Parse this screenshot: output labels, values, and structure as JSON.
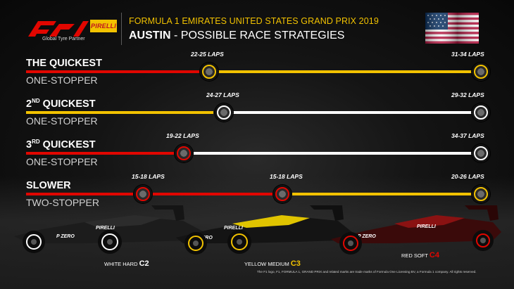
{
  "header": {
    "partner_text": "Global Tyre Partner",
    "pirelli_logo": "PIRELLI",
    "event_title": "FORMULA 1 EMIRATES UNITED STATES GRAND PRIX 2019",
    "city": "AUSTIN",
    "subtitle_rest": " - POSSIBLE RACE STRATEGIES",
    "flag": "usa-flag-icon"
  },
  "colors": {
    "hard": "#ffffff",
    "medium": "#f2c200",
    "soft": "#e10600",
    "accent": "#f2c200"
  },
  "strategies": [
    {
      "name": "THE QUICKEST",
      "ordinal": "",
      "name_rest": "",
      "type": "ONE-STOPPER",
      "stops": [
        {
          "laps": "22-25 LAPS",
          "compound": "medium"
        },
        {
          "laps": "31-34 LAPS",
          "compound": "medium"
        }
      ]
    },
    {
      "name": "2",
      "ordinal": "ND",
      "name_rest": " QUICKEST",
      "type": "ONE-STOPPER",
      "stops": [
        {
          "laps": "24-27 LAPS",
          "compound": "hard"
        },
        {
          "laps": "29-32 LAPS",
          "compound": "hard"
        }
      ]
    },
    {
      "name": "3",
      "ordinal": "RD",
      "name_rest": " QUICKEST",
      "type": "ONE-STOPPER",
      "stops": [
        {
          "laps": "19-22 LAPS",
          "compound": "soft"
        },
        {
          "laps": "34-37 LAPS",
          "compound": "hard"
        }
      ]
    },
    {
      "name": "SLOWER",
      "ordinal": "",
      "name_rest": "",
      "type": "TWO-STOPPER",
      "stops": [
        {
          "laps": "15-18 LAPS",
          "compound": "soft"
        },
        {
          "laps": "15-18 LAPS",
          "compound": "soft"
        },
        {
          "laps": "20-26 LAPS",
          "compound": "medium"
        }
      ]
    }
  ],
  "compounds": [
    {
      "label": "WHITE HARD",
      "code": "C2"
    },
    {
      "label": "YELLOW MEDIUM",
      "code": "C3"
    },
    {
      "label": "RED SOFT",
      "code": "C4"
    }
  ],
  "car_branding": {
    "sponsor": "PIRELLI",
    "tyre_brand": "P ZERO"
  },
  "legal": "The F1 logo, F1, FORMULA 1, GRAND PRIX and related marks are trade marks of Formula One Licensing BV, a Formula 1 company. All rights reserved."
}
